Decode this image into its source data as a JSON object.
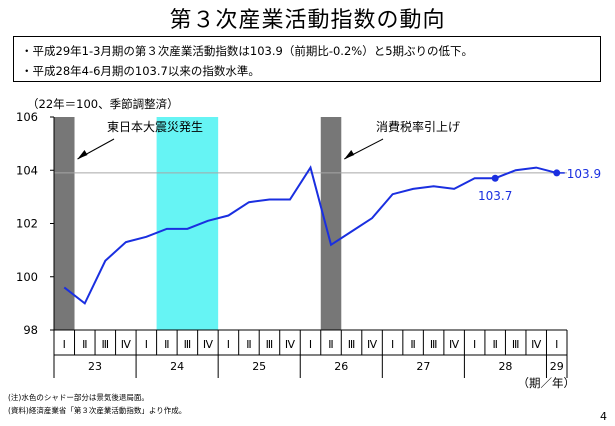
{
  "title": "第３次産業活動指数の動向",
  "bullets": [
    "・平成29年1-3月期の第３次産業活動指数は103.9（前期比-0.2%）と5期ぶりの低下。",
    "・平成28年4-6月期の103.7以来の指数水準。"
  ],
  "unit_note": "（22年＝100、季節調整済）",
  "footnotes": [
    "(注)水色のシャドー部分は景気後退局面。",
    "(資料)経済産業省「第３次産業活動指数」より作成。"
  ],
  "page_number": "4",
  "colors": {
    "line": "#1a2fe0",
    "cyan_shade": "#66f4f4",
    "grey_shade": "#777777",
    "ref_line": "#a6a6a6"
  },
  "chart_data": {
    "type": "line",
    "ylim": [
      98,
      106
    ],
    "yticks": [
      "98",
      "100",
      "102",
      "104",
      "106"
    ],
    "quarter_labels": [
      "Ⅰ",
      "Ⅱ",
      "Ⅲ",
      "Ⅳ",
      "Ⅰ",
      "Ⅱ",
      "Ⅲ",
      "Ⅳ",
      "Ⅰ",
      "Ⅱ",
      "Ⅲ",
      "Ⅳ",
      "Ⅰ",
      "Ⅱ",
      "Ⅲ",
      "Ⅳ",
      "Ⅰ",
      "Ⅱ",
      "Ⅲ",
      "Ⅳ",
      "Ⅰ",
      "Ⅱ",
      "Ⅲ",
      "Ⅳ",
      "Ⅰ"
    ],
    "year_labels": [
      "23",
      "24",
      "25",
      "26",
      "27",
      "28",
      "29"
    ],
    "year_spans": [
      [
        0,
        3
      ],
      [
        4,
        7
      ],
      [
        8,
        11
      ],
      [
        12,
        15
      ],
      [
        16,
        19
      ],
      [
        20,
        23
      ],
      [
        24,
        24
      ]
    ],
    "axis_suffix": "（期／年）",
    "series": [
      {
        "values": [
          99.6,
          99.0,
          100.6,
          101.3,
          101.5,
          101.8,
          101.8,
          102.1,
          102.3,
          102.8,
          102.9,
          102.9,
          104.1,
          101.2,
          101.7,
          102.2,
          103.1,
          103.3,
          103.4,
          103.3,
          103.7,
          103.7,
          104.0,
          104.1,
          103.9
        ]
      }
    ],
    "reference_line": 103.9,
    "highlight_points": [
      {
        "index": 21,
        "label": "103.7"
      },
      {
        "index": 24,
        "label": "103.9"
      }
    ],
    "shades": [
      {
        "kind": "grey",
        "from": 0,
        "to": 0
      },
      {
        "kind": "cyan",
        "from": 5,
        "to": 7
      },
      {
        "kind": "grey",
        "from": 13,
        "to": 13
      }
    ],
    "annotations": [
      {
        "text": "東日本大震災発生",
        "target_index": 0
      },
      {
        "text": "消費税率引上げ",
        "target_index": 13
      }
    ]
  }
}
